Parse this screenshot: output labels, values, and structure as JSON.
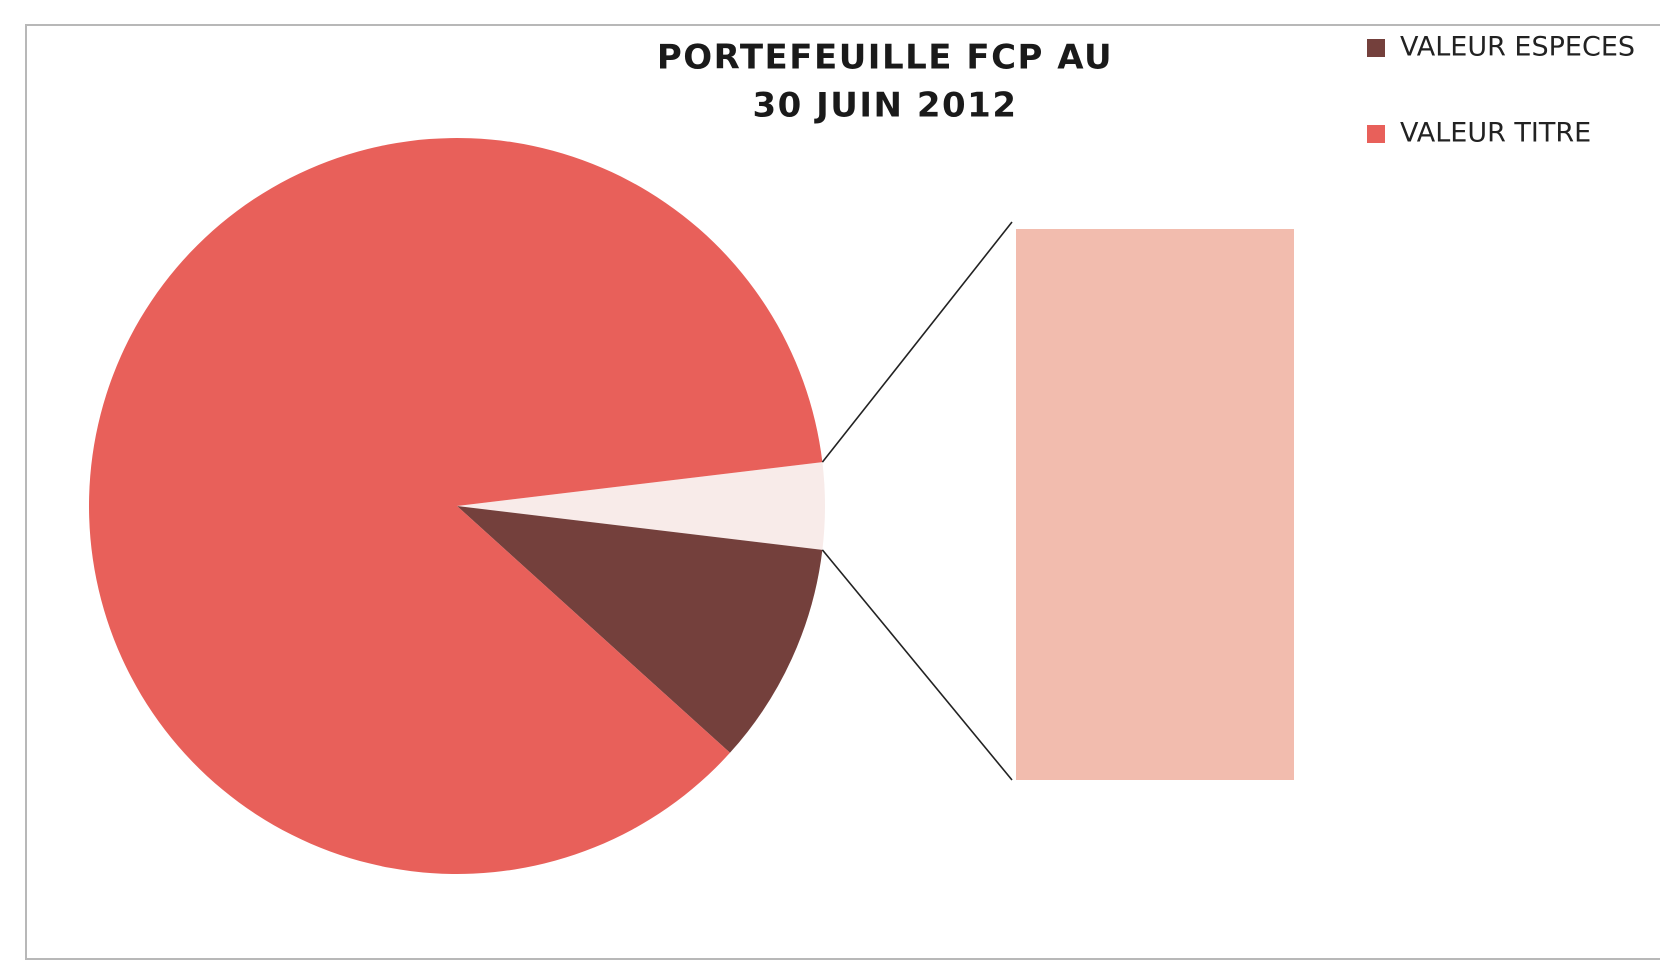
{
  "chart_data": {
    "type": "bar_of_pie",
    "title": [
      "PORTEFEUILLE FCP AU",
      "30 JUIN 2012"
    ],
    "categories": [
      "VALEUR ESPECES",
      "VALEUR TITRE",
      null
    ],
    "values": [
      9.8,
      86.4,
      3.8
    ],
    "colors": [
      "#74403c",
      "#e8605a",
      "#f2bcae"
    ],
    "other_slice_color": "#f8ebe9",
    "legend": "top-right"
  }
}
